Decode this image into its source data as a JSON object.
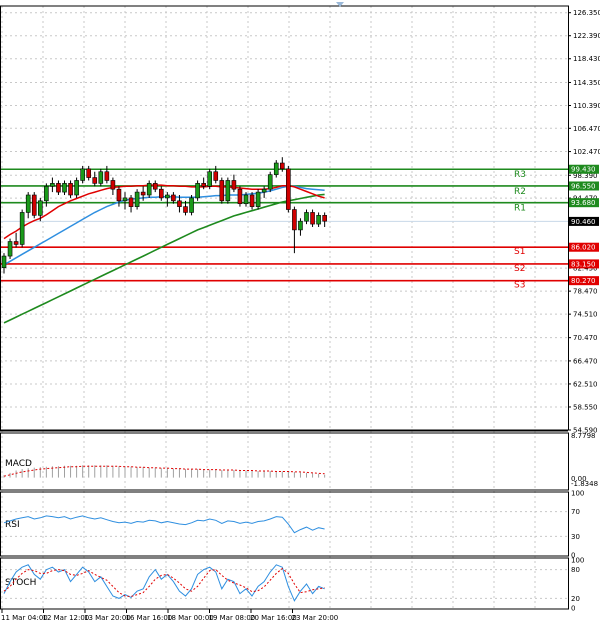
{
  "chart_data": {
    "type": "candlestick",
    "y_ticks": [
      "126.350",
      "122.390",
      "118.430",
      "114.350",
      "110.390",
      "106.470",
      "102.470",
      "98.390",
      "94.470",
      "82.430",
      "78.470",
      "74.510",
      "70.470",
      "66.470",
      "62.510",
      "58.550",
      "54.590"
    ],
    "x_labels": [
      "11 Mar 04:00",
      "12 Mar 12:00",
      "13 Mar 20:00",
      "16 Mar 16:00",
      "18 Mar 00:00",
      "19 Mar 08:00",
      "20 Mar 16:00",
      "23 Mar 20:00"
    ],
    "ylim": [
      54.59,
      127.5
    ],
    "current_price": "90.460",
    "levels": [
      {
        "name": "R3",
        "value": 99.43,
        "tag": "99.430",
        "color": "#1e8a1e"
      },
      {
        "name": "R2",
        "value": 96.55,
        "tag": "96.550",
        "color": "#1e8a1e"
      },
      {
        "name": "R1",
        "value": 93.68,
        "tag": "93.680",
        "color": "#1e8a1e"
      },
      {
        "name": "S1",
        "value": 86.02,
        "tag": "86.020",
        "color": "#e00000"
      },
      {
        "name": "S2",
        "value": 83.15,
        "tag": "83.150",
        "color": "#e00000"
      },
      {
        "name": "S3",
        "value": 80.27,
        "tag": "80.270",
        "color": "#e00000"
      }
    ],
    "candles": [
      [
        82.5,
        85.0,
        81.5,
        84.5
      ],
      [
        84.5,
        87.5,
        84.0,
        87.0
      ],
      [
        87.0,
        88.5,
        86.0,
        86.5
      ],
      [
        86.5,
        92.5,
        86.0,
        92.0
      ],
      [
        92.0,
        95.5,
        91.0,
        95.0
      ],
      [
        95.0,
        95.5,
        91.0,
        91.5
      ],
      [
        91.5,
        94.5,
        90.5,
        94.0
      ],
      [
        94.0,
        97.0,
        93.0,
        96.5
      ],
      [
        96.5,
        98.0,
        95.5,
        97.0
      ],
      [
        97.0,
        97.5,
        95.0,
        95.5
      ],
      [
        95.5,
        97.5,
        95.0,
        97.0
      ],
      [
        97.0,
        97.5,
        94.5,
        95.0
      ],
      [
        95.0,
        98.0,
        94.5,
        97.5
      ],
      [
        97.5,
        100.0,
        97.0,
        99.5
      ],
      [
        99.5,
        100.0,
        97.5,
        98.0
      ],
      [
        98.0,
        99.0,
        96.5,
        97.0
      ],
      [
        97.0,
        99.5,
        96.5,
        99.0
      ],
      [
        99.0,
        100.0,
        97.0,
        97.5
      ],
      [
        97.5,
        98.0,
        95.0,
        96.0
      ],
      [
        96.0,
        96.5,
        93.0,
        94.0
      ],
      [
        94.0,
        95.5,
        92.5,
        94.5
      ],
      [
        94.5,
        95.0,
        92.0,
        93.0
      ],
      [
        93.0,
        96.0,
        92.5,
        95.5
      ],
      [
        95.5,
        96.5,
        94.0,
        95.0
      ],
      [
        95.0,
        97.5,
        94.5,
        97.0
      ],
      [
        97.0,
        97.5,
        95.5,
        96.0
      ],
      [
        96.0,
        96.5,
        94.0,
        94.5
      ],
      [
        94.5,
        95.5,
        93.0,
        95.0
      ],
      [
        95.0,
        95.5,
        93.5,
        94.0
      ],
      [
        94.0,
        95.0,
        92.0,
        93.0
      ],
      [
        93.0,
        94.0,
        91.5,
        92.0
      ],
      [
        92.0,
        95.0,
        91.5,
        94.5
      ],
      [
        94.5,
        97.5,
        94.0,
        97.0
      ],
      [
        97.0,
        98.0,
        96.0,
        96.5
      ],
      [
        96.5,
        99.5,
        96.0,
        99.0
      ],
      [
        99.0,
        100.0,
        97.0,
        97.5
      ],
      [
        97.5,
        98.0,
        93.5,
        94.0
      ],
      [
        94.0,
        98.0,
        93.5,
        97.5
      ],
      [
        97.5,
        98.5,
        95.5,
        96.0
      ],
      [
        96.0,
        96.5,
        93.0,
        93.5
      ],
      [
        93.5,
        95.5,
        93.0,
        95.0
      ],
      [
        95.0,
        95.5,
        92.5,
        93.0
      ],
      [
        93.0,
        96.0,
        92.5,
        95.5
      ],
      [
        95.5,
        96.5,
        94.5,
        96.0
      ],
      [
        96.0,
        99.0,
        95.5,
        98.5
      ],
      [
        98.5,
        101.0,
        98.0,
        100.5
      ],
      [
        100.5,
        101.5,
        99.0,
        99.5
      ],
      [
        99.5,
        100.0,
        92.0,
        92.5
      ],
      [
        92.5,
        93.0,
        85.0,
        89.0
      ],
      [
        89.0,
        91.0,
        88.0,
        90.5
      ],
      [
        90.5,
        92.5,
        90.0,
        92.0
      ],
      [
        92.0,
        92.5,
        89.5,
        90.0
      ],
      [
        90.0,
        92.0,
        89.5,
        91.5
      ],
      [
        91.5,
        92.0,
        89.5,
        90.5
      ]
    ],
    "ma_red": [
      87.5,
      88.2,
      88.8,
      89.5,
      90.1,
      90.6,
      91.0,
      91.6,
      92.3,
      93.0,
      93.5,
      94.0,
      94.4,
      94.8,
      95.2,
      95.5,
      95.8,
      96.1,
      96.3,
      96.4,
      96.5,
      96.5,
      96.6,
      96.6,
      96.7,
      96.7,
      96.7,
      96.6,
      96.6,
      96.5,
      96.5,
      96.4,
      96.4,
      96.4,
      96.5,
      96.5,
      96.4,
      96.4,
      96.3,
      96.2,
      96.1,
      96.0,
      96.0,
      96.0,
      96.1,
      96.3,
      96.6,
      96.6,
      96.4,
      96.0,
      95.6,
      95.2,
      94.8,
      94.5
    ],
    "ma_blue": [
      83.0,
      83.6,
      84.2,
      84.8,
      85.4,
      86.0,
      86.6,
      87.2,
      87.8,
      88.4,
      89.0,
      89.6,
      90.2,
      90.8,
      91.4,
      92.0,
      92.5,
      93.0,
      93.4,
      93.8,
      94.1,
      94.3,
      94.4,
      94.5,
      94.6,
      94.6,
      94.7,
      94.7,
      94.7,
      94.6,
      94.6,
      94.6,
      94.6,
      94.7,
      94.8,
      94.9,
      94.9,
      95.0,
      95.0,
      95.0,
      95.1,
      95.2,
      95.3,
      95.5,
      95.7,
      96.0,
      96.3,
      96.5,
      96.5,
      96.3,
      96.1,
      96.0,
      95.9,
      95.8
    ],
    "ma_green": [
      73.0,
      73.5,
      74.0,
      74.5,
      75.0,
      75.5,
      76.0,
      76.5,
      77.0,
      77.5,
      78.0,
      78.5,
      79.0,
      79.5,
      80.0,
      80.5,
      81.0,
      81.5,
      82.0,
      82.5,
      83.0,
      83.5,
      84.0,
      84.5,
      85.0,
      85.5,
      86.0,
      86.5,
      87.0,
      87.5,
      88.0,
      88.5,
      89.0,
      89.4,
      89.8,
      90.2,
      90.6,
      91.0,
      91.4,
      91.7,
      92.0,
      92.3,
      92.6,
      92.9,
      93.2,
      93.5,
      93.8,
      94.0,
      94.2,
      94.4,
      94.6,
      94.8,
      95.0,
      95.1
    ],
    "macd": {
      "label": "MACD",
      "ticks": [
        "8.7798",
        "0.00",
        "-1.8348"
      ],
      "ylim": [
        -2.2,
        8.8
      ],
      "histogram": [
        0.5,
        1.0,
        1.5,
        1.8,
        2.0,
        2.1,
        2.2,
        2.3,
        2.4,
        2.4,
        2.5,
        2.5,
        2.5,
        2.6,
        2.6,
        2.6,
        2.6,
        2.6,
        2.5,
        2.4,
        2.4,
        2.3,
        2.2,
        2.2,
        2.1,
        2.1,
        2.0,
        2.0,
        1.9,
        1.9,
        1.8,
        1.8,
        1.8,
        1.7,
        1.7,
        1.7,
        1.6,
        1.6,
        1.6,
        1.5,
        1.5,
        1.5,
        1.4,
        1.4,
        1.4,
        1.4,
        1.3,
        1.3,
        1.2,
        1.1,
        1.0,
        0.9,
        0.8,
        0.6
      ],
      "signal": [
        0.3,
        0.6,
        0.9,
        1.2,
        1.4,
        1.6,
        1.8,
        1.9,
        2.0,
        2.1,
        2.2,
        2.3,
        2.3,
        2.4,
        2.4,
        2.4,
        2.4,
        2.4,
        2.4,
        2.4,
        2.3,
        2.3,
        2.2,
        2.2,
        2.1,
        2.1,
        2.0,
        2.0,
        1.9,
        1.9,
        1.8,
        1.8,
        1.8,
        1.7,
        1.7,
        1.7,
        1.6,
        1.6,
        1.6,
        1.5,
        1.5,
        1.5,
        1.4,
        1.4,
        1.4,
        1.3,
        1.3,
        1.3,
        1.2,
        1.2,
        1.1,
        1.0,
        0.9,
        0.8
      ]
    },
    "rsi": {
      "label": "RSI",
      "ticks": [
        "100",
        "70",
        "30",
        "0"
      ],
      "ylim": [
        0,
        100
      ],
      "values": [
        52,
        55,
        58,
        60,
        62,
        58,
        60,
        63,
        62,
        60,
        62,
        58,
        61,
        63,
        60,
        58,
        60,
        57,
        54,
        52,
        53,
        51,
        54,
        53,
        56,
        55,
        52,
        54,
        52,
        50,
        49,
        52,
        56,
        55,
        58,
        56,
        51,
        55,
        54,
        51,
        53,
        51,
        54,
        55,
        58,
        62,
        61,
        50,
        36,
        41,
        45,
        40,
        44,
        42
      ]
    },
    "stoch": {
      "label": "STOCH",
      "ticks": [
        "100",
        "80",
        "20",
        "0"
      ],
      "ylim": [
        0,
        100
      ],
      "main": [
        30,
        55,
        75,
        85,
        90,
        70,
        60,
        80,
        85,
        75,
        80,
        55,
        70,
        85,
        75,
        55,
        65,
        45,
        25,
        20,
        28,
        22,
        35,
        40,
        65,
        80,
        60,
        70,
        55,
        35,
        25,
        40,
        70,
        80,
        85,
        75,
        40,
        60,
        55,
        30,
        40,
        25,
        45,
        55,
        75,
        90,
        85,
        45,
        15,
        35,
        50,
        30,
        45,
        40
      ],
      "signal": [
        35,
        45,
        60,
        72,
        80,
        78,
        72,
        72,
        78,
        80,
        78,
        70,
        68,
        72,
        78,
        70,
        64,
        58,
        45,
        32,
        25,
        24,
        28,
        32,
        45,
        60,
        68,
        70,
        62,
        52,
        40,
        35,
        45,
        62,
        78,
        80,
        68,
        58,
        52,
        48,
        42,
        34,
        36,
        44,
        58,
        72,
        82,
        72,
        50,
        32,
        34,
        38,
        40,
        42
      ]
    }
  }
}
